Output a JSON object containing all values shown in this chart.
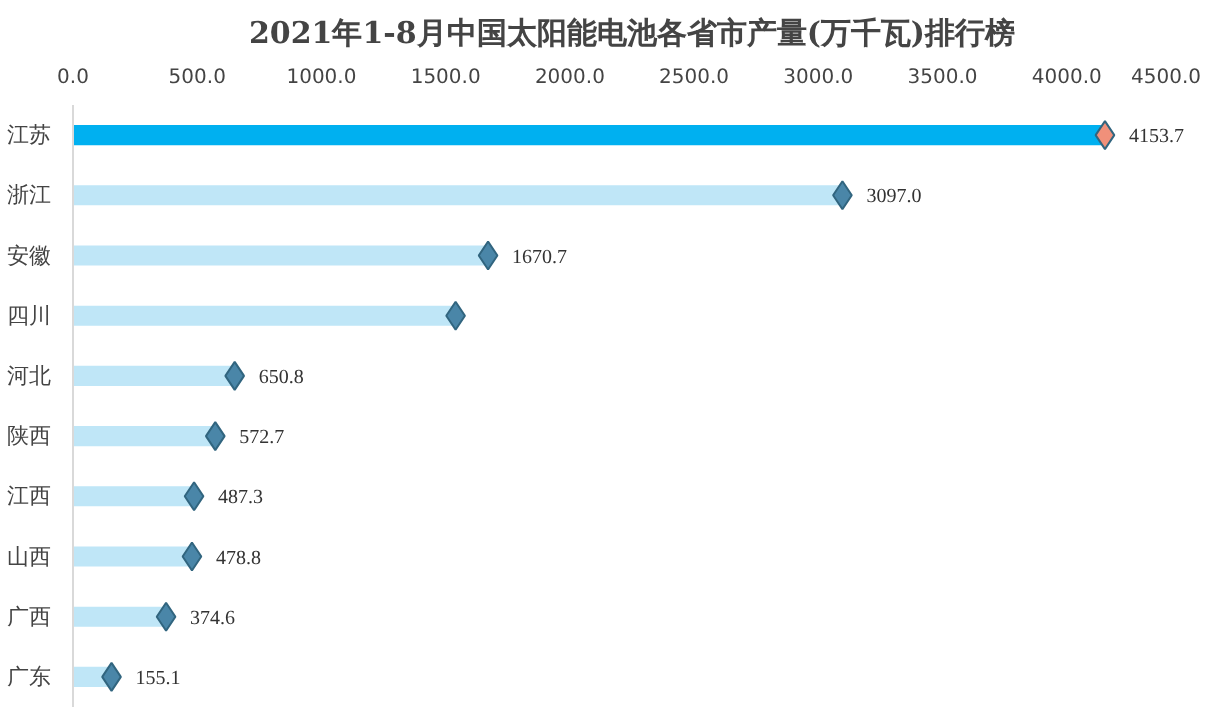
{
  "chart_data": {
    "type": "bar",
    "title": "2021年1-8月中国太阳能电池各省市产量(万千瓦)排行榜",
    "orientation": "horizontal",
    "categories": [
      "江苏",
      "浙江",
      "安徽",
      "四川",
      "河北",
      "陕西",
      "江西",
      "山西",
      "广西",
      "广东"
    ],
    "series": [
      {
        "colors": [
          "#00b0f0",
          "#bfe6f7",
          "#bfe6f7",
          "#bfe6f7",
          "#bfe6f7",
          "#bfe6f7",
          "#bfe6f7",
          "#bfe6f7",
          "#bfe6f7",
          "#bfe6f7"
        ],
        "values": [
          4153.7,
          3097.0,
          1670.7,
          1540,
          650.8,
          572.7,
          487.3,
          478.8,
          374.6,
          155.1
        ]
      },
      {
        "type": "scatter",
        "marker": "diamond",
        "colors": [
          "#f0907a",
          "#4a86a8",
          "#4a86a8",
          "#4a86a8",
          "#4a86a8",
          "#4a86a8",
          "#4a86a8",
          "#4a86a8",
          "#4a86a8",
          "#4a86a8"
        ],
        "values": [
          4153.7,
          3097.0,
          1670.7,
          1540,
          650.8,
          572.7,
          487.3,
          478.8,
          374.6,
          155.1
        ],
        "value_labels": [
          "4153.7",
          "3097.0",
          "1670.7",
          null,
          "650.8",
          "572.7",
          "487.3",
          "478.8",
          "374.6",
          "155.1"
        ]
      }
    ],
    "xlim": [
      0,
      4500
    ],
    "xticks": [
      {
        "value": 0,
        "label": "0.0"
      },
      {
        "value": 500,
        "label": "500.0"
      },
      {
        "value": 1000,
        "label": "1000.0"
      },
      {
        "value": 1500,
        "label": "1500.0"
      },
      {
        "value": 2000,
        "label": "2000.0"
      },
      {
        "value": 2500,
        "label": "2500.0"
      },
      {
        "value": 3000,
        "label": "3000.0"
      },
      {
        "value": 3500,
        "label": "3500.0"
      },
      {
        "value": 4000,
        "label": "4000.0"
      },
      {
        "value": 4500,
        "label": "4500.0"
      }
    ],
    "grid": false
  }
}
